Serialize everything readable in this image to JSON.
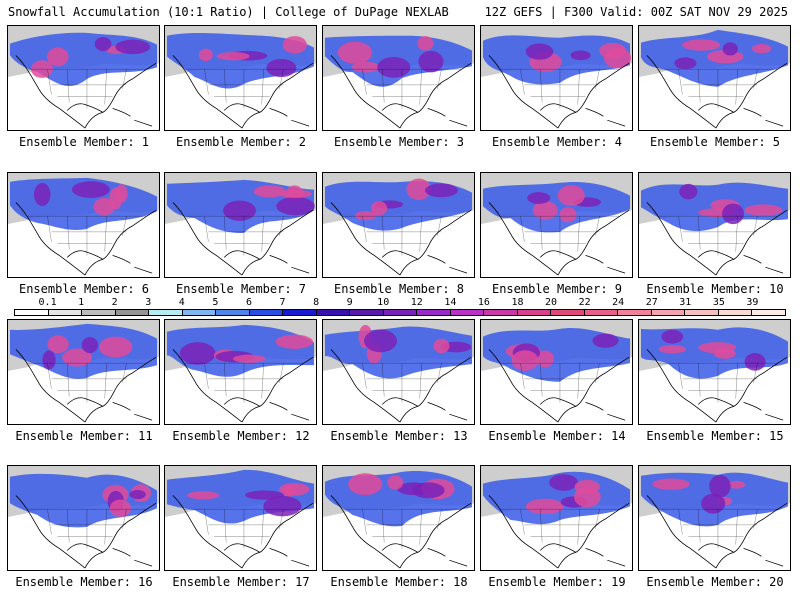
{
  "header": {
    "left": "Snowfall Accumulation (10:1 Ratio) | College of DuPage NEXLAB",
    "right": "12Z GEFS | F300 Valid: 00Z SAT NOV 29 2025"
  },
  "panels": [
    {
      "label": "Ensemble Member: 1"
    },
    {
      "label": "Ensemble Member: 2"
    },
    {
      "label": "Ensemble Member: 3"
    },
    {
      "label": "Ensemble Member: 4"
    },
    {
      "label": "Ensemble Member: 5"
    },
    {
      "label": "Ensemble Member: 6"
    },
    {
      "label": "Ensemble Member: 7"
    },
    {
      "label": "Ensemble Member: 8"
    },
    {
      "label": "Ensemble Member: 9"
    },
    {
      "label": "Ensemble Member: 10"
    },
    {
      "label": "Ensemble Member: 11"
    },
    {
      "label": "Ensemble Member: 12"
    },
    {
      "label": "Ensemble Member: 13"
    },
    {
      "label": "Ensemble Member: 14"
    },
    {
      "label": "Ensemble Member: 15"
    },
    {
      "label": "Ensemble Member: 16"
    },
    {
      "label": "Ensemble Member: 17"
    },
    {
      "label": "Ensemble Member: 18"
    },
    {
      "label": "Ensemble Member: 19"
    },
    {
      "label": "Ensemble Member: 20"
    }
  ],
  "legend": {
    "ticks": [
      "0.1",
      "1",
      "2",
      "3",
      "4",
      "5",
      "6",
      "7",
      "8",
      "9",
      "10",
      "12",
      "14",
      "16",
      "18",
      "20",
      "22",
      "24",
      "27",
      "31",
      "35",
      "39"
    ],
    "colors": [
      "#ffffff",
      "#e6e6e6",
      "#bdbdbd",
      "#969696",
      "#b3ecf5",
      "#7fb7f0",
      "#4d86e6",
      "#2a4fe0",
      "#1a1ad0",
      "#3a0fb0",
      "#5a1aa8",
      "#7a22b8",
      "#9a2ac8",
      "#b832c8",
      "#c83aa8",
      "#d84090",
      "#e04a7a",
      "#e8608a",
      "#f0829c",
      "#f4a4b0",
      "#f6c0c0",
      "#f8dcd4",
      "#fbece6"
    ]
  },
  "colors": {
    "land": "#ffffff",
    "outline": "#000000",
    "light_snow": "#bdbdbd",
    "blue_snow": "#3a5ae8",
    "heavy_snow": "#7a22b8",
    "max_snow": "#e04a9a"
  }
}
